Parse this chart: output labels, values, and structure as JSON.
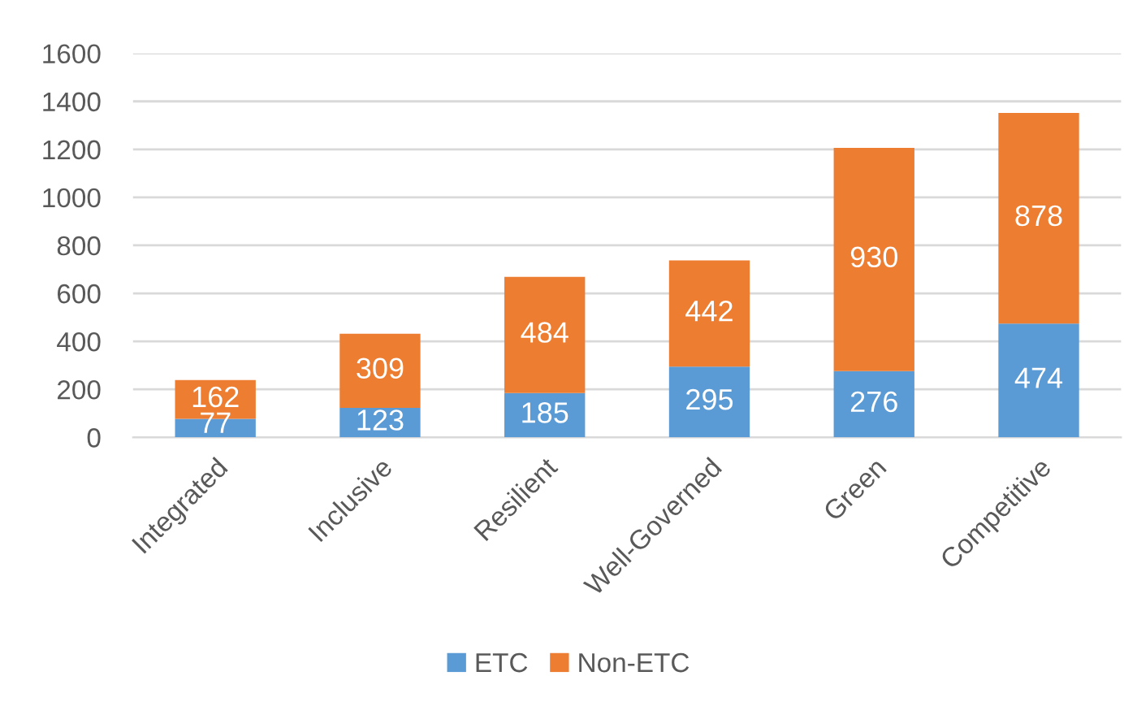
{
  "chart_data": {
    "type": "bar",
    "stacked": true,
    "categories": [
      "Integrated",
      "Inclusive",
      "Resilient",
      "Well-Governed",
      "Green",
      "Competitive"
    ],
    "series": [
      {
        "name": "ETC",
        "color": "#5b9bd5",
        "values": [
          77,
          123,
          185,
          295,
          276,
          474
        ]
      },
      {
        "name": "Non-ETC",
        "color": "#ed7d31",
        "values": [
          162,
          309,
          484,
          442,
          930,
          878
        ]
      }
    ],
    "ylim": [
      0,
      1600
    ],
    "yticks": [
      0,
      200,
      400,
      600,
      800,
      1000,
      1200,
      1400,
      1600
    ],
    "grid": "y",
    "legend": "bottom",
    "data_labels": true
  }
}
